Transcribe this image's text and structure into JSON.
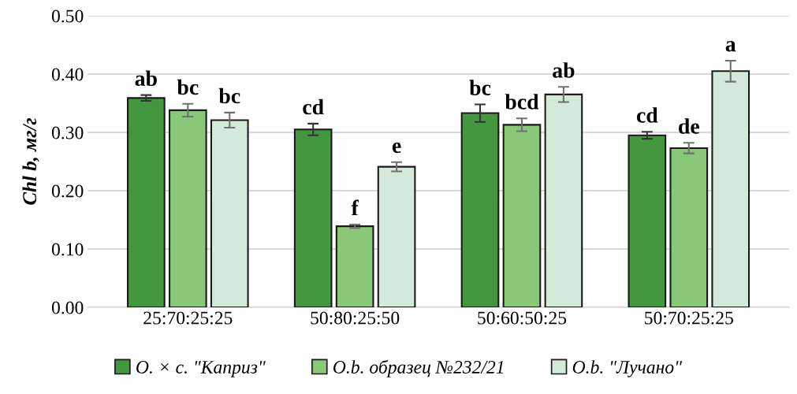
{
  "chart_data": {
    "type": "bar",
    "ylabel": "Chl b, мг/г",
    "categories": [
      "25:70:25:25",
      "50:80:25:50",
      "50:60:50:25",
      "50:70:25:25"
    ],
    "series": [
      {
        "name": "O. × c. \"Каприз\"",
        "color": "#43973f",
        "values": [
          0.359,
          0.305,
          0.333,
          0.295
        ],
        "errors": [
          0.005,
          0.01,
          0.015,
          0.006
        ],
        "value_labels": [
          "ab",
          "cd",
          "bc",
          "cd"
        ]
      },
      {
        "name": "O.b. образец №232/21",
        "color": "#88c878",
        "values": [
          0.338,
          0.139,
          0.313,
          0.273
        ],
        "errors": [
          0.011,
          0.003,
          0.011,
          0.009
        ],
        "value_labels": [
          "bc",
          "f",
          "bcd",
          "de"
        ]
      },
      {
        "name": "O.b. \"Лучано\"",
        "color": "#d3eadb",
        "values": [
          0.321,
          0.241,
          0.365,
          0.405
        ],
        "errors": [
          0.013,
          0.008,
          0.013,
          0.018
        ],
        "value_labels": [
          "bc",
          "e",
          "ab",
          "a"
        ]
      }
    ],
    "ylim": [
      0,
      0.5
    ],
    "yticks": [
      {
        "value": 0,
        "label": "0.00"
      },
      {
        "value": 0.1,
        "label": "0.10"
      },
      {
        "value": 0.2,
        "label": "0.20"
      },
      {
        "value": 0.3,
        "label": "0.30"
      },
      {
        "value": 0.4,
        "label": "0.40"
      },
      {
        "value": 0.5,
        "label": "0.50"
      }
    ],
    "grid": "y",
    "legend": "bottom"
  }
}
